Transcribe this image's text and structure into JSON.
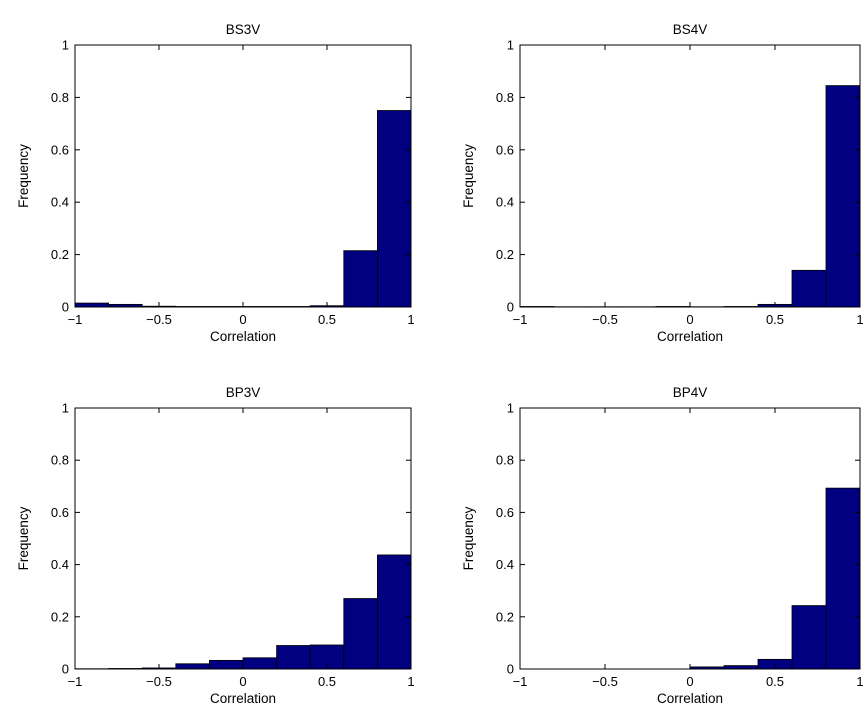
{
  "chart_data": [
    {
      "type": "bar",
      "title": "BS3V",
      "xlabel": "Correlation",
      "ylabel": "Frequency",
      "xlim": [
        -1,
        1
      ],
      "ylim": [
        0,
        1
      ],
      "xticks": [
        -1,
        -0.5,
        0,
        0.5,
        1
      ],
      "xtick_labels": [
        "−1",
        "−0.5",
        "0",
        "0.5",
        "1"
      ],
      "yticks": [
        0,
        0.2,
        0.4,
        0.6,
        0.8,
        1
      ],
      "ytick_labels": [
        "0",
        "0.2",
        "0.4",
        "0.6",
        "0.8",
        "1"
      ],
      "bin_edges": [
        -1,
        -0.8,
        -0.6,
        -0.4,
        -0.2,
        0,
        0.2,
        0.4,
        0.6,
        0.8,
        1
      ],
      "values": [
        0.015,
        0.01,
        0.003,
        0.002,
        0.002,
        0.002,
        0.002,
        0.005,
        0.215,
        0.75
      ],
      "bar_color": "#000080",
      "grid": false
    },
    {
      "type": "bar",
      "title": "BS4V",
      "xlabel": "Correlation",
      "ylabel": "Frequency",
      "xlim": [
        -1,
        1
      ],
      "ylim": [
        0,
        1
      ],
      "xticks": [
        -1,
        -0.5,
        0,
        0.5,
        1
      ],
      "xtick_labels": [
        "−1",
        "−0.5",
        "0",
        "0.5",
        "1"
      ],
      "yticks": [
        0,
        0.2,
        0.4,
        0.6,
        0.8,
        1
      ],
      "ytick_labels": [
        "0",
        "0.2",
        "0.4",
        "0.6",
        "0.8",
        "1"
      ],
      "bin_edges": [
        -1,
        -0.8,
        -0.6,
        -0.4,
        -0.2,
        0,
        0.2,
        0.4,
        0.6,
        0.8,
        1
      ],
      "values": [
        0.002,
        0.001,
        0.001,
        0.001,
        0.002,
        0.001,
        0.002,
        0.01,
        0.14,
        0.845
      ],
      "bar_color": "#000080",
      "grid": false
    },
    {
      "type": "bar",
      "title": "BP3V",
      "xlabel": "Correlation",
      "ylabel": "Frequency",
      "xlim": [
        -1,
        1
      ],
      "ylim": [
        0,
        1
      ],
      "xticks": [
        -1,
        -0.5,
        0,
        0.5,
        1
      ],
      "xtick_labels": [
        "−1",
        "−0.5",
        "0",
        "0.5",
        "1"
      ],
      "yticks": [
        0,
        0.2,
        0.4,
        0.6,
        0.8,
        1
      ],
      "ytick_labels": [
        "0",
        "0.2",
        "0.4",
        "0.6",
        "0.8",
        "1"
      ],
      "bin_edges": [
        -1,
        -0.8,
        -0.6,
        -0.4,
        -0.2,
        0,
        0.2,
        0.4,
        0.6,
        0.8,
        1
      ],
      "values": [
        0.001,
        0.002,
        0.004,
        0.02,
        0.033,
        0.043,
        0.09,
        0.092,
        0.27,
        0.437
      ],
      "bar_color": "#000080",
      "grid": false
    },
    {
      "type": "bar",
      "title": "BP4V",
      "xlabel": "Correlation",
      "ylabel": "Frequency",
      "xlim": [
        -1,
        1
      ],
      "ylim": [
        0,
        1
      ],
      "xticks": [
        -1,
        -0.5,
        0,
        0.5,
        1
      ],
      "xtick_labels": [
        "−1",
        "−0.5",
        "0",
        "0.5",
        "1"
      ],
      "yticks": [
        0,
        0.2,
        0.4,
        0.6,
        0.8,
        1
      ],
      "ytick_labels": [
        "0",
        "0.2",
        "0.4",
        "0.6",
        "0.8",
        "1"
      ],
      "bin_edges": [
        -1,
        -0.8,
        -0.6,
        -0.4,
        -0.2,
        0,
        0.2,
        0.4,
        0.6,
        0.8,
        1
      ],
      "values": [
        0,
        0,
        0,
        0,
        0,
        0.008,
        0.013,
        0.037,
        0.243,
        0.693
      ],
      "bar_color": "#000080",
      "grid": false
    }
  ]
}
